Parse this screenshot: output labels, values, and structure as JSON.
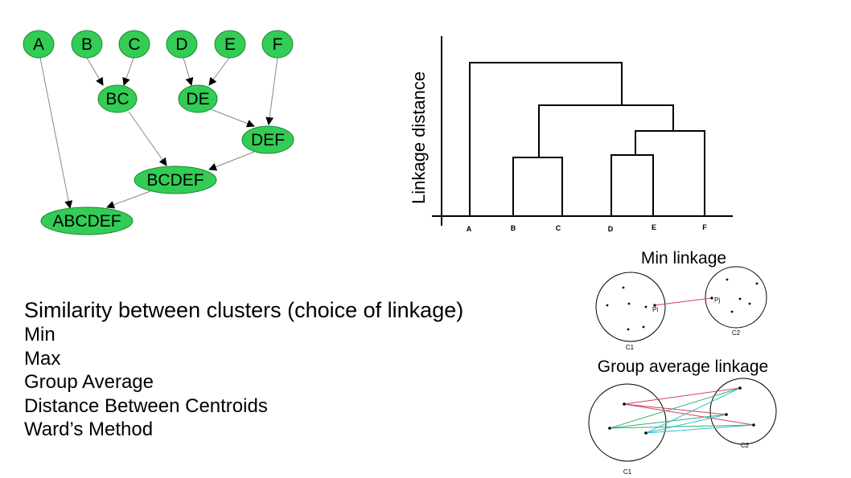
{
  "cluster_graph": {
    "nodes": [
      "A",
      "B",
      "C",
      "D",
      "E",
      "F",
      "BC",
      "DE",
      "DEF",
      "BCDEF",
      "ABCDEF"
    ]
  },
  "dendrogram": {
    "ylabel": "Linkage distance",
    "leaves": [
      "A",
      "B",
      "C",
      "D",
      "E",
      "F"
    ]
  },
  "linkage_list": {
    "heading": "Similarity between clusters (choice of linkage)",
    "items": [
      "Min",
      "Max",
      "Group Average",
      "Distance Between Centroids",
      "Ward’s Method"
    ]
  },
  "min_linkage": {
    "title": "Min linkage",
    "point_i": "Pi",
    "point_j": "Pj",
    "c1": "C1",
    "c2": "C2"
  },
  "group_average": {
    "title": "Group average linkage",
    "c1": "C1",
    "c2": "C2"
  },
  "colors": {
    "node_fill": "#33cc55",
    "edge": "#888888",
    "min_link": "#d04060",
    "avg_red": "#d04060",
    "avg_green": "#30b070",
    "avg_teal": "#30c0d0"
  }
}
